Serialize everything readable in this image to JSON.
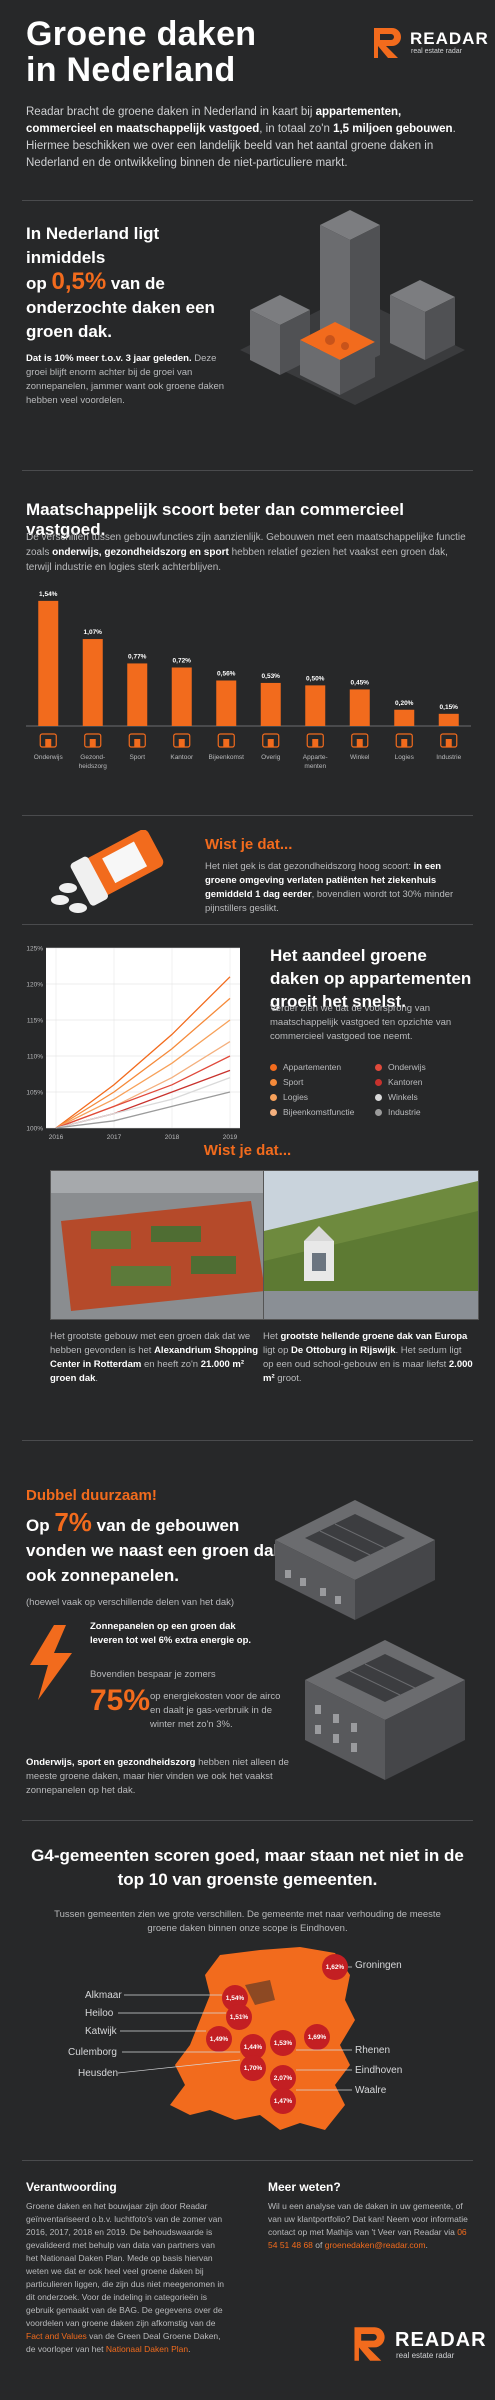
{
  "header": {
    "title_line1": "Groene daken",
    "title_line2": "in Nederland",
    "logo_name": "READAR",
    "logo_sub": "real estate radar"
  },
  "intro": {
    "p1": "Readar bracht de groene daken in Nederland in kaart bij ",
    "b1": "appartementen, commercieel en maatschappelijk vastgoed",
    "p2": ", in totaal zo'n ",
    "b2": "1,5 miljoen gebouwen",
    "p3": ". Hiermee beschikken we over een landelijk beeld van het aantal groene daken in Nederland en de ontwikkeling binnen de niet-particuliere markt."
  },
  "stat1": {
    "l1": "In Nederland ligt inmiddels",
    "op": "op ",
    "pct": "0,5%",
    "l2": " van de onderzochte daken een groen dak.",
    "note_b": "Dat is 10% meer t.o.v. 3 jaar geleden.",
    "note": " Deze groei blijft enorm achter bij de groei van zonnepanelen, jammer want ook groene daken hebben veel voordelen."
  },
  "bars": {
    "title": "Maatschappelijk scoort beter dan commercieel vastgoed.",
    "desc_1": "De verschillen tussen gebouwfuncties zijn aanzienlijk. Gebouwen met een maatschappelijke functie zoals ",
    "desc_b": "onderwijs, gezondheidszorg en sport",
    "desc_2": " hebben relatief gezien het vaakst een groen dak, terwijl industrie en logies sterk achterblijven."
  },
  "chart_data": [
    {
      "type": "bar",
      "categories": [
        "Onderwijs",
        "Gezond-heidszorg",
        "Sport",
        "Kantoor",
        "Bijeenkomst",
        "Overig",
        "Apparte-menten",
        "Winkel",
        "Logies",
        "Industrie"
      ],
      "values": [
        1.54,
        1.07,
        0.77,
        0.72,
        0.56,
        0.53,
        0.5,
        0.45,
        0.2,
        0.15
      ],
      "value_labels": [
        "1,54%",
        "1,07%",
        "0,77%",
        "0,72%",
        "0,56%",
        "0,53%",
        "0,50%",
        "0,45%",
        "0,20%",
        "0,15%"
      ],
      "icons": [
        "school-icon",
        "hospital-icon",
        "sport-icon",
        "office-icon",
        "meeting-icon",
        "other-icon",
        "apartment-icon",
        "shop-icon",
        "hotel-icon",
        "factory-icon"
      ],
      "color": "#f26b1d",
      "ylim": [
        0,
        1.6
      ]
    },
    {
      "type": "line",
      "x": [
        2016,
        2017,
        2018,
        2019
      ],
      "x_tick_labels": [
        "2016",
        "2017",
        "2018",
        "2019"
      ],
      "y_tick_labels": [
        "100%",
        "105%",
        "110%",
        "115%",
        "120%",
        "125%"
      ],
      "ylim": [
        100,
        125
      ],
      "grid": true,
      "series": [
        {
          "name": "Appartementen",
          "color": "#f26b1d",
          "values": [
            100,
            106,
            113,
            121
          ]
        },
        {
          "name": "Sport",
          "color": "#f58a3a",
          "values": [
            100,
            105,
            111,
            118
          ]
        },
        {
          "name": "Logies",
          "color": "#f7a15a",
          "values": [
            100,
            104,
            109,
            115
          ]
        },
        {
          "name": "Bijeenkomstfunctie",
          "color": "#f4b07e",
          "values": [
            100,
            103,
            107,
            112
          ]
        },
        {
          "name": "Onderwijs",
          "color": "#e04a3b",
          "values": [
            100,
            103,
            106,
            110
          ]
        },
        {
          "name": "Kantoren",
          "color": "#c8322d",
          "values": [
            100,
            102,
            105,
            108
          ]
        },
        {
          "name": "Winkels",
          "color": "#d9d9d9",
          "values": [
            100,
            102,
            104,
            107
          ]
        },
        {
          "name": "Industrie",
          "color": "#9b9b9b",
          "values": [
            100,
            101,
            103,
            105
          ]
        }
      ]
    }
  ],
  "wist1": {
    "title": "Wist je dat...",
    "t1": "Het niet gek is dat gezondheidszorg hoog scoort: ",
    "b": "in een groene omgeving verlaten patiënten het ziekenhuis gemiddeld 1 dag eerder",
    "t2": ", bovendien wordt tot 30% minder pijnstillers geslikt."
  },
  "linechart": {
    "title": "Het aandeel groene daken op appartementen groeit het snelst.",
    "desc": "Verder zien we dat de voorsprong van maatschappelijk vastgoed ten opzichte van commercieel vastgoed toe neemt."
  },
  "wist2": {
    "title": "Wist je dat...",
    "left_1": "Het grootste gebouw met een groen dak dat we hebben gevonden is het ",
    "left_b": "Alexandrium Shopping Center in Rotterdam",
    "left_2": " en heeft zo'n ",
    "left_b2": "21.000 m² groen dak",
    "left_3": ".",
    "right_1": "Het ",
    "right_b": "grootste hellende groene dak van Europa",
    "right_2": " ligt op ",
    "right_b2": "De Ottoburg in Rijswijk",
    "right_3": ". Het sedum ligt op een oud school-gebouw en is maar liefst ",
    "right_b3": "2.000 m²",
    "right_4": " groot."
  },
  "duurzaam": {
    "title": "Dubbel duurzaam!",
    "op": "Op ",
    "pct": "7%",
    "head": " van de gebouwen vonden we naast een groen dak ook zonnepanelen.",
    "sub": "(hoewel vaak op verschillende delen van het dak)",
    "p1": "Zonnepanelen op een groen dak leveren tot wel 6% extra energie op.",
    "p2": "Bovendien bespaar je zomers",
    "big": "75%",
    "p3": "op energiekosten voor de airco en daalt je gas-verbruik in de winter met zo'n 3%.",
    "p4_b": "Onderwijs, sport en gezondheidszorg",
    "p4": " hebben niet alleen de meeste groene daken, maar hier vinden we ook het vaakst zonnepanelen op het dak."
  },
  "map": {
    "title": "G4-gemeenten scoren goed, maar staan net niet in de top 10 van groenste gemeenten.",
    "desc": "Tussen gemeenten zien we grote verschillen. De gemeente met naar verhouding de meeste groene daken binnen onze scope is Eindhoven.",
    "cities": [
      {
        "name": "Groningen",
        "value": "1,62%"
      },
      {
        "name": "Alkmaar",
        "value": "1,54%"
      },
      {
        "name": "Heiloo",
        "value": "1,51%"
      },
      {
        "name": "Katwijk",
        "value": "1,49%"
      },
      {
        "name": "Culemborg",
        "value": "1,44%"
      },
      {
        "name": "Heusden",
        "value": "1,70%"
      },
      {
        "name": "Rhenen",
        "value": "1,53%"
      },
      {
        "name": "Eindhoven",
        "value": "2,07%"
      },
      {
        "name": "Waalre",
        "value": "1,47%"
      },
      {
        "name": "",
        "value": "1,69%"
      }
    ]
  },
  "footer": {
    "left_title": "Verantwoording",
    "left_text": "Groene daken en het bouwjaar zijn door Readar geïnventariseerd o.b.v. luchtfoto's van de zomer van 2016, 2017, 2018 en 2019. De behoudswaarde is gevalideerd met behulp van data van partners van het Nationaal Daken Plan. Mede op basis hiervan weten we dat er ook heel veel groene daken bij particulieren liggen, die zijn dus niet meegenomen in dit onderzoek. Voor de indeling in categorieën is gebruik gemaakt van de BAG. De gegevens over de voordelen van groene daken zijn afkomstig van de ",
    "left_link1": "Fact and Values",
    "left_text2": " van de Green Deal Groene Daken, de voorloper van het ",
    "left_link2": "Nationaal Daken Plan",
    "left_text3": ".",
    "right_title": "Meer weten?",
    "right_text": "Wil u een analyse van de daken in uw gemeente, of van uw klantportfolio? Dat kan! Neem voor informatie contact op met Mathijs van 't Veer van Readar via ",
    "right_phone": "06 54 51 48 68",
    "right_mid": " of ",
    "right_mail": "groenedaken@readar.com",
    "right_end": ".",
    "logo_name": "READAR",
    "logo_sub": "real estate radar"
  },
  "colors": {
    "accent": "#f26b1d",
    "background": "#272829",
    "pin": "#c31f23"
  }
}
